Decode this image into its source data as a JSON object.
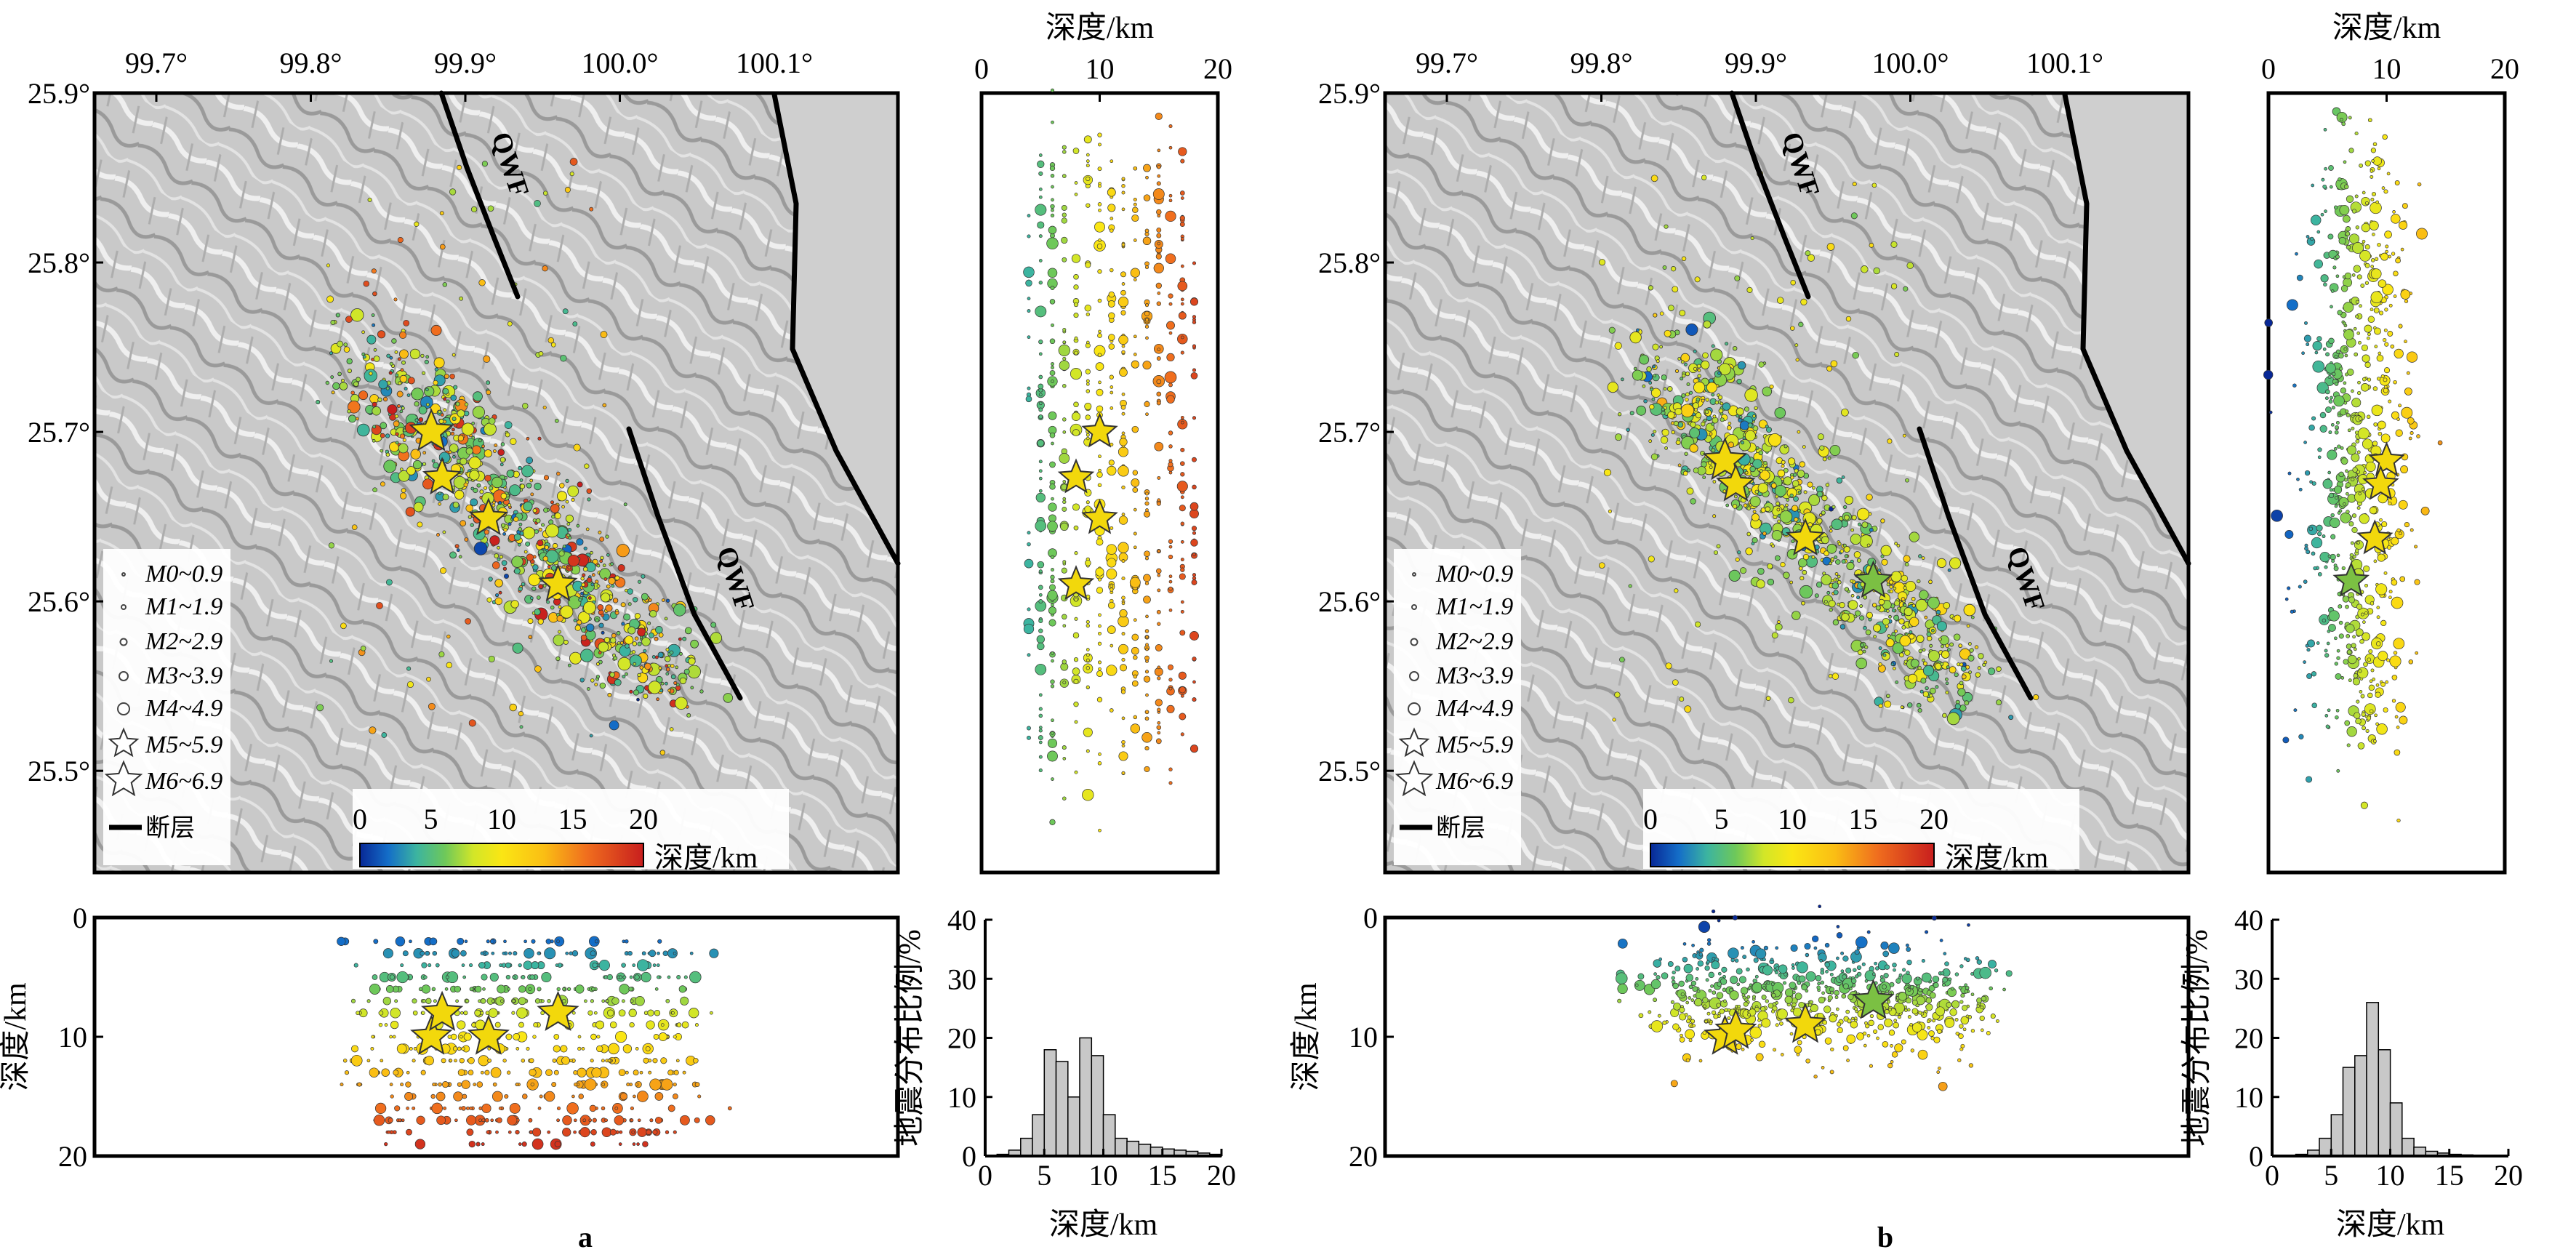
{
  "panels": [
    {
      "id": "a",
      "label": "a",
      "lon_ticks": [
        "99.7°",
        "99.8°",
        "99.9°",
        "100.0°",
        "100.1°"
      ],
      "lat_ticks": [
        "25.9°",
        "25.8°",
        "25.7°",
        "25.6°",
        "25.5°"
      ],
      "fault_label": "QWF",
      "legend": [
        "M0~0.9",
        "M1~1.9",
        "M2~2.9",
        "M3~3.9",
        "M4~4.9",
        "M5~5.9",
        "M6~6.9",
        "断层"
      ],
      "colorbar": {
        "ticks": [
          "0",
          "5",
          "10",
          "15",
          "20"
        ],
        "label": "深度/km"
      },
      "depth_axis_label": "深度/km",
      "depth_ticks": [
        "0",
        "10",
        "20"
      ],
      "hist_ylabel": "地震分布比例/%",
      "hist_yticks": [
        "0",
        "10",
        "20",
        "30",
        "40"
      ],
      "hist_xticks": [
        "0",
        "5",
        "10",
        "15",
        "20"
      ],
      "hist_xlabel": "深度/km"
    },
    {
      "id": "b",
      "label": "b",
      "lon_ticks": [
        "99.7°",
        "99.8°",
        "99.9°",
        "100.0°",
        "100.1°"
      ],
      "lat_ticks": [
        "25.9°",
        "25.8°",
        "25.7°",
        "25.6°",
        "25.5°"
      ],
      "fault_label": "QWF",
      "legend": [
        "M0~0.9",
        "M1~1.9",
        "M2~2.9",
        "M3~3.9",
        "M4~4.9",
        "M5~5.9",
        "M6~6.9",
        "断层"
      ],
      "colorbar": {
        "ticks": [
          "0",
          "5",
          "10",
          "15",
          "20"
        ],
        "label": "深度/km"
      },
      "depth_axis_label": "深度/km",
      "depth_ticks": [
        "0",
        "10",
        "20"
      ],
      "hist_ylabel": "地震分布比例/%",
      "hist_yticks": [
        "0",
        "10",
        "20",
        "30",
        "40"
      ],
      "hist_xticks": [
        "0",
        "5",
        "10",
        "15",
        "20"
      ],
      "hist_xlabel": "深度/km"
    }
  ],
  "chart_data": [
    {
      "type": "scatter",
      "panel": "a",
      "xlim": [
        99.66,
        100.18
      ],
      "ylim": [
        25.44,
        25.9
      ],
      "mainshocks": [
        {
          "lon": 99.878,
          "lat": 25.7,
          "depth": 10
        },
        {
          "lon": 99.885,
          "lat": 25.673,
          "depth": 8
        },
        {
          "lon": 99.915,
          "lat": 25.649,
          "depth": 10
        },
        {
          "lon": 99.96,
          "lat": 25.61,
          "depth": 8
        }
      ]
    },
    {
      "type": "bar",
      "panel": "a",
      "xlabel": "深度/km",
      "ylabel": "地震分布比例/%",
      "xlim": [
        0,
        20
      ],
      "ylim": [
        0,
        40
      ],
      "bins": [
        0,
        1,
        2,
        3,
        4,
        5,
        6,
        7,
        8,
        9,
        10,
        11,
        12,
        13,
        14,
        15,
        16,
        17,
        18,
        19
      ],
      "values": [
        0,
        0.3,
        1,
        3,
        7,
        18,
        16,
        10,
        20,
        17,
        7,
        3,
        2.5,
        2,
        1.5,
        1.2,
        1,
        0.8,
        0.5,
        0.3
      ]
    },
    {
      "type": "scatter",
      "panel": "b",
      "xlim": [
        99.66,
        100.18
      ],
      "ylim": [
        25.44,
        25.9
      ],
      "mainshocks": [
        {
          "lon": 99.88,
          "lat": 25.683,
          "depth": 10
        },
        {
          "lon": 99.887,
          "lat": 25.669,
          "depth": 9.5
        },
        {
          "lon": 99.932,
          "lat": 25.637,
          "depth": 9
        },
        {
          "lon": 99.976,
          "lat": 25.612,
          "depth": 7
        }
      ]
    },
    {
      "type": "bar",
      "panel": "b",
      "xlabel": "深度/km",
      "ylabel": "地震分布比例/%",
      "xlim": [
        0,
        20
      ],
      "ylim": [
        0,
        40
      ],
      "bins": [
        0,
        1,
        2,
        3,
        4,
        5,
        6,
        7,
        8,
        9,
        10,
        11,
        12,
        13,
        14,
        15,
        16,
        17,
        18,
        19
      ],
      "values": [
        0,
        0,
        0.3,
        1,
        3,
        7,
        15,
        17,
        26,
        18,
        9,
        3,
        1.5,
        0.8,
        0.5,
        0.3,
        0.2,
        0.1,
        0,
        0
      ]
    }
  ]
}
